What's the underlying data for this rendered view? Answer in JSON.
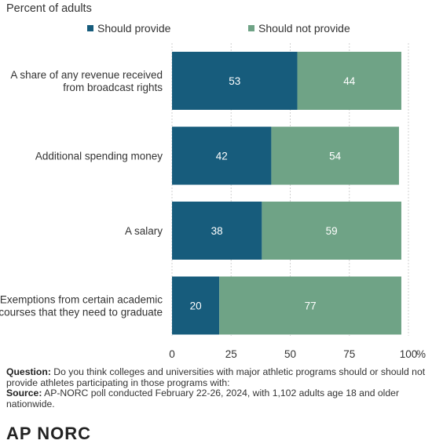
{
  "subtitle": "Percent of adults",
  "colors": {
    "provide": "#175c7c",
    "not_provide": "#6fa386",
    "grid": "#d0d0d0",
    "text": "#333333"
  },
  "chart_data": {
    "type": "bar",
    "orientation": "horizontal",
    "stacked": true,
    "categories": [
      [
        "A share of any revenue received",
        "from broadcast rights"
      ],
      [
        "Additional spending money"
      ],
      [
        "A salary"
      ],
      [
        "Exemptions from certain academic",
        "courses that they need to graduate"
      ]
    ],
    "series": [
      {
        "name": "Should provide",
        "values": [
          53,
          42,
          38,
          20
        ]
      },
      {
        "name": "Should not provide",
        "values": [
          44,
          54,
          59,
          77
        ]
      }
    ],
    "xlim": [
      0,
      100
    ],
    "xticks": [
      0,
      25,
      50,
      75,
      100
    ],
    "xtick_labels": [
      "0",
      "25",
      "50",
      "75",
      "100"
    ],
    "x_unit": "%",
    "grid": true,
    "legend_position": "top"
  },
  "footnote": {
    "question_label": "Question:",
    "question_text": "Do you think colleges and universities with major athletic programs should or should not provide athletes participating in those programs with:",
    "source_label": "Source:",
    "source_text": "AP-NORC poll conducted February 22-26, 2024, with 1,102 adults age 18 and older nationwide."
  },
  "logo_text": "AP NORC"
}
